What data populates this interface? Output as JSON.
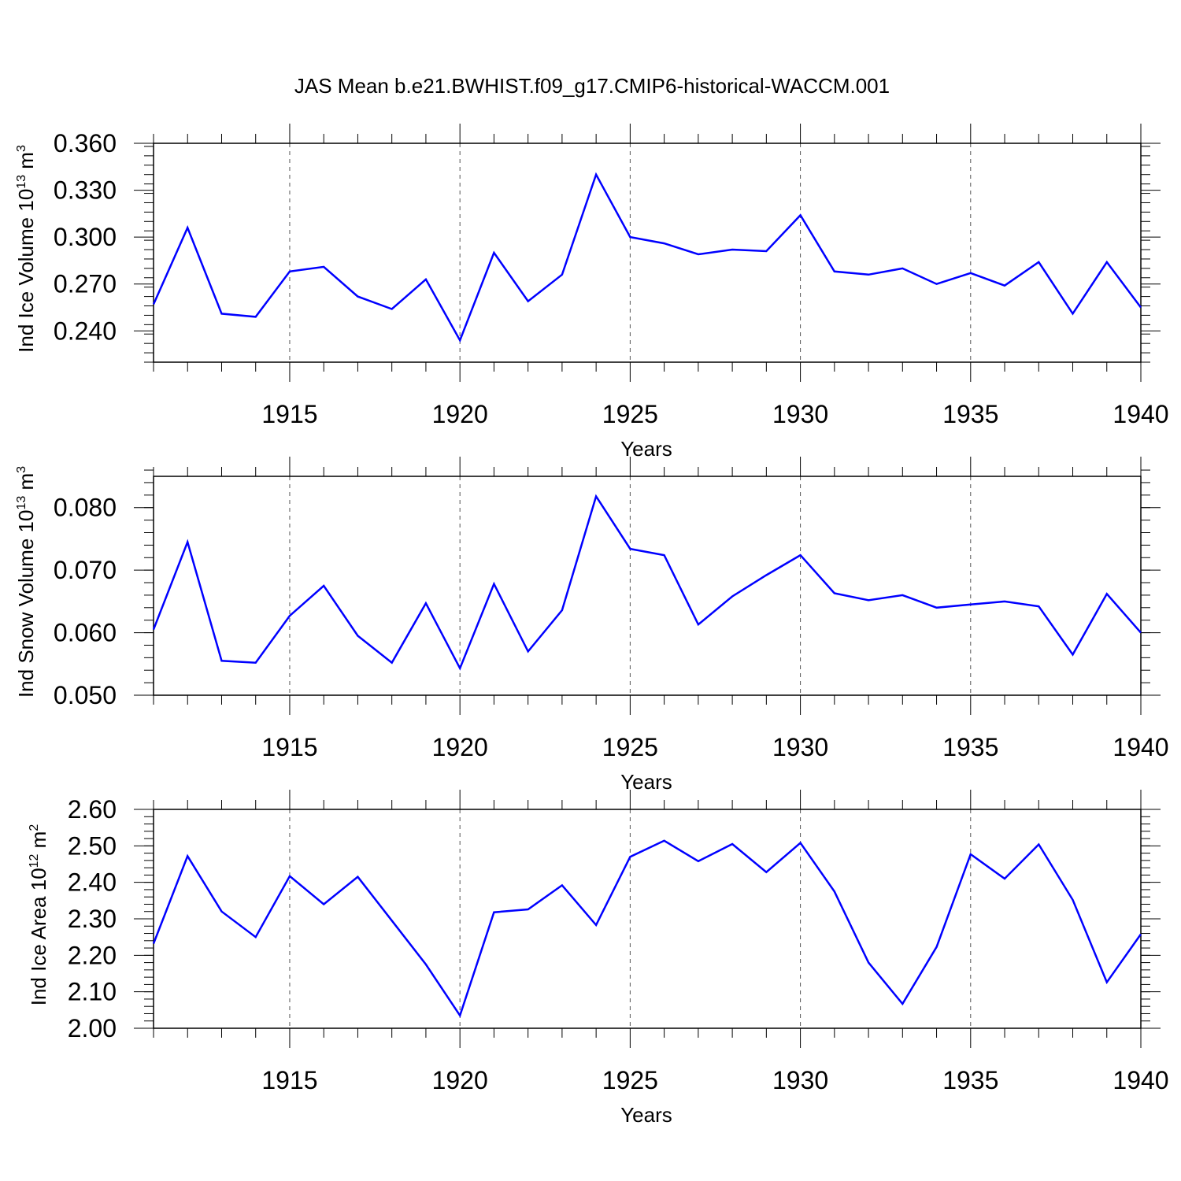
{
  "title": "JAS Mean b.e21.BWHIST.f09_g17.CMIP6-historical-WACCM.001",
  "line_color": "#0000ff",
  "chart_data": [
    {
      "type": "line",
      "ylabel": "Ind Ice Volume 10",
      "ylabel_exp": "13",
      "ylabel_unit": " m",
      "ylabel_unit_exp": "3",
      "xlabel": "Years",
      "xlim": [
        1911,
        1940
      ],
      "ylim": [
        0.22,
        0.36
      ],
      "yticks": [
        0.24,
        0.27,
        0.3,
        0.33,
        0.36
      ],
      "ytick_labels": [
        "0.240",
        "0.270",
        "0.300",
        "0.330",
        "0.360"
      ],
      "yminor_step": 0.006,
      "xticks": [
        1915,
        1920,
        1925,
        1930,
        1935,
        1940
      ],
      "xtick_labels": [
        "1915",
        "1920",
        "1925",
        "1930",
        "1935",
        "1940"
      ],
      "x": [
        1911,
        1912,
        1913,
        1914,
        1915,
        1916,
        1917,
        1918,
        1919,
        1920,
        1921,
        1922,
        1923,
        1924,
        1925,
        1926,
        1927,
        1928,
        1929,
        1930,
        1931,
        1932,
        1933,
        1934,
        1935,
        1936,
        1937,
        1938,
        1939,
        1940
      ],
      "values": [
        0.257,
        0.306,
        0.251,
        0.249,
        0.278,
        0.281,
        0.262,
        0.254,
        0.273,
        0.234,
        0.29,
        0.259,
        0.276,
        0.34,
        0.3,
        0.296,
        0.289,
        0.292,
        0.291,
        0.314,
        0.278,
        0.276,
        0.28,
        0.27,
        0.277,
        0.269,
        0.284,
        0.251,
        0.284,
        0.255
      ]
    },
    {
      "type": "line",
      "ylabel": "Ind Snow Volume 10",
      "ylabel_exp": "13",
      "ylabel_unit": " m",
      "ylabel_unit_exp": "3",
      "xlabel": "Years",
      "xlim": [
        1911,
        1940
      ],
      "ylim": [
        0.05,
        0.085
      ],
      "yticks": [
        0.05,
        0.06,
        0.07,
        0.08
      ],
      "ytick_labels": [
        "0.050",
        "0.060",
        "0.070",
        "0.080"
      ],
      "yminor_step": 0.002,
      "xticks": [
        1915,
        1920,
        1925,
        1930,
        1935,
        1940
      ],
      "xtick_labels": [
        "1915",
        "1920",
        "1925",
        "1930",
        "1935",
        "1940"
      ],
      "x": [
        1911,
        1912,
        1913,
        1914,
        1915,
        1916,
        1917,
        1918,
        1919,
        1920,
        1921,
        1922,
        1923,
        1924,
        1925,
        1926,
        1927,
        1928,
        1929,
        1930,
        1931,
        1932,
        1933,
        1934,
        1935,
        1936,
        1937,
        1938,
        1939,
        1940
      ],
      "values": [
        0.0605,
        0.0745,
        0.0555,
        0.0552,
        0.0627,
        0.0675,
        0.0595,
        0.0552,
        0.0647,
        0.0543,
        0.0678,
        0.057,
        0.0636,
        0.0818,
        0.0734,
        0.0724,
        0.0613,
        0.0658,
        0.0692,
        0.0724,
        0.0663,
        0.0652,
        0.066,
        0.064,
        0.0645,
        0.065,
        0.0642,
        0.0565,
        0.0662,
        0.06
      ]
    },
    {
      "type": "line",
      "ylabel": "Ind Ice Area 10",
      "ylabel_exp": "12",
      "ylabel_unit": " m",
      "ylabel_unit_exp": "2",
      "xlabel": "Years",
      "xlim": [
        1911,
        1940
      ],
      "ylim": [
        2.0,
        2.6
      ],
      "yticks": [
        2.0,
        2.1,
        2.2,
        2.3,
        2.4,
        2.5,
        2.6
      ],
      "ytick_labels": [
        "2.00",
        "2.10",
        "2.20",
        "2.30",
        "2.40",
        "2.50",
        "2.60"
      ],
      "yminor_step": 0.02,
      "xticks": [
        1915,
        1920,
        1925,
        1930,
        1935,
        1940
      ],
      "xtick_labels": [
        "1915",
        "1920",
        "1925",
        "1930",
        "1935",
        "1940"
      ],
      "x": [
        1911,
        1912,
        1913,
        1914,
        1915,
        1916,
        1917,
        1918,
        1919,
        1920,
        1921,
        1922,
        1923,
        1924,
        1925,
        1926,
        1927,
        1928,
        1929,
        1930,
        1931,
        1932,
        1933,
        1934,
        1935,
        1936,
        1937,
        1938,
        1939,
        1940
      ],
      "values": [
        2.232,
        2.472,
        2.32,
        2.25,
        2.417,
        2.34,
        2.415,
        2.295,
        2.175,
        2.035,
        2.318,
        2.326,
        2.392,
        2.283,
        2.47,
        2.514,
        2.458,
        2.505,
        2.428,
        2.508,
        2.375,
        2.18,
        2.067,
        2.223,
        2.477,
        2.41,
        2.504,
        2.352,
        2.126,
        2.258
      ]
    }
  ]
}
